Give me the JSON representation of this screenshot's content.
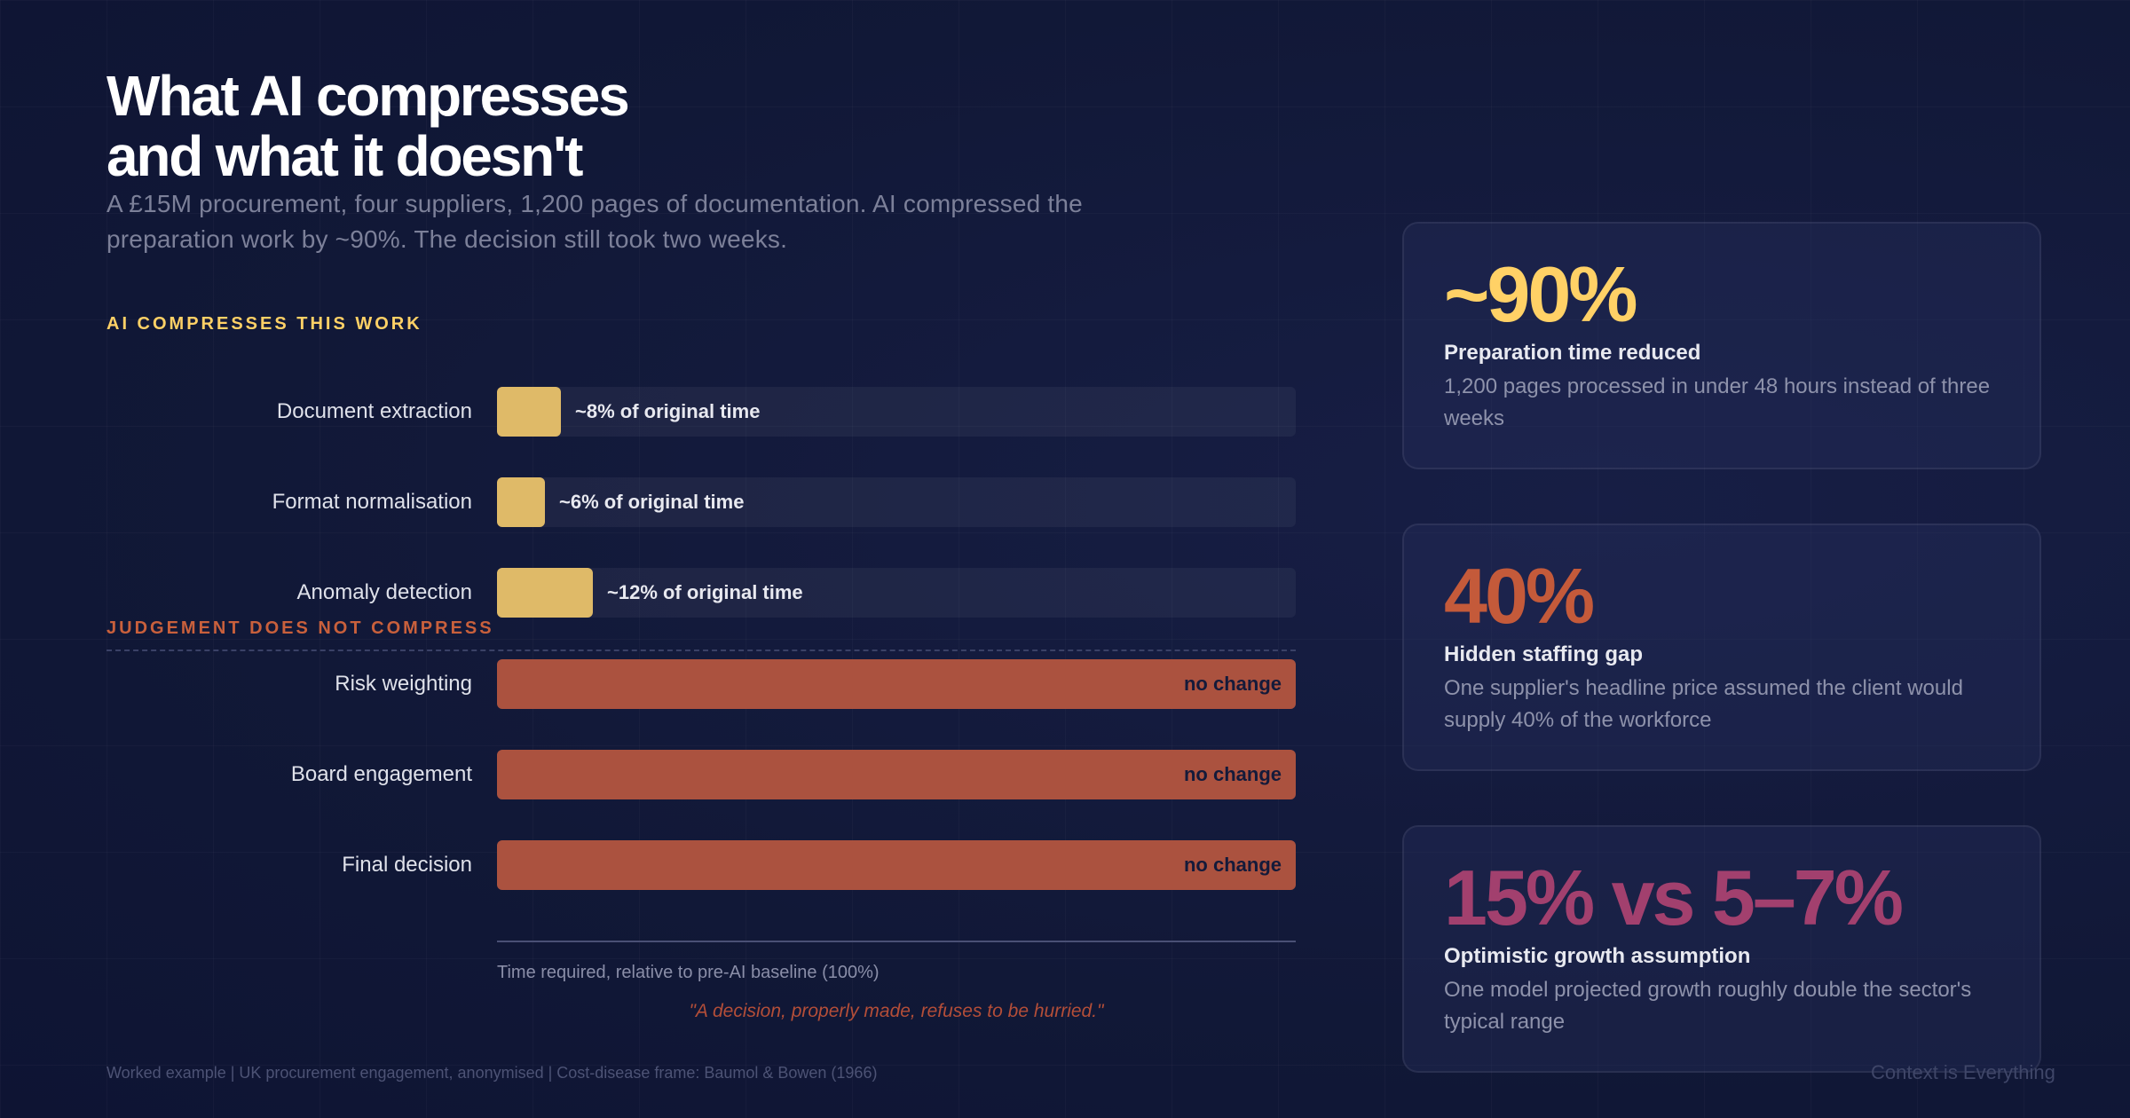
{
  "header": {
    "title_line1": "What AI compresses",
    "title_line2": "and what it doesn't",
    "subtitle": "A £15M procurement, four suppliers, 1,200 pages of documentation. AI compressed the preparation work by ~90%. The decision still took two weeks."
  },
  "colors": {
    "compress": "#dfba68",
    "judge": "#ab523f",
    "stat_yellow": "#ffd166",
    "stat_orange": "#c45a3a",
    "stat_magenta": "#a2406e"
  },
  "chart_data": {
    "type": "bar",
    "orientation": "horizontal",
    "xlabel": "Time required, relative to pre-AI baseline (100%)",
    "xlim": [
      0,
      100
    ],
    "groups": [
      {
        "label": "AI COMPRESSES THIS WORK",
        "rows": [
          {
            "category": "Document extraction",
            "value": 8,
            "value_label": "~8% of original time"
          },
          {
            "category": "Format normalisation",
            "value": 6,
            "value_label": "~6% of original time"
          },
          {
            "category": "Anomaly detection",
            "value": 12,
            "value_label": "~12% of original time"
          }
        ]
      },
      {
        "label": "JUDGEMENT DOES NOT COMPRESS",
        "rows": [
          {
            "category": "Risk weighting",
            "value": 100,
            "value_label": "no change"
          },
          {
            "category": "Board engagement",
            "value": 100,
            "value_label": "no change"
          },
          {
            "category": "Final decision",
            "value": 100,
            "value_label": "no change"
          }
        ]
      }
    ]
  },
  "quote": "\"A decision, properly made, refuses to be hurried.\"",
  "cards": [
    {
      "stat": "~90%",
      "title": "Preparation time reduced",
      "desc": "1,200 pages processed in under 48 hours instead of three weeks"
    },
    {
      "stat": "40%",
      "title": "Hidden staffing gap",
      "desc": "One supplier's headline price assumed the client would supply 40% of the workforce"
    },
    {
      "stat": "15% vs 5–7%",
      "title": "Optimistic growth assumption",
      "desc": "One model projected growth roughly double the sector's typical range"
    }
  ],
  "footer": {
    "note": "Worked example | UK procurement engagement, anonymised | Cost-disease frame: Baumol & Bowen (1966)",
    "brand": "Context is Everything"
  }
}
